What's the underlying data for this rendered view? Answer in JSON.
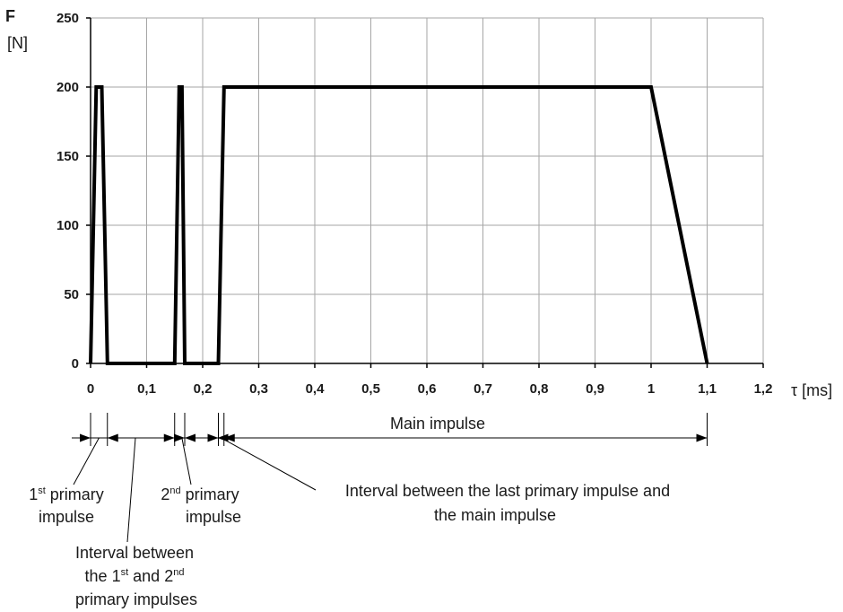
{
  "chart_data": {
    "type": "line",
    "title": "",
    "xlabel": "τ [ms]",
    "ylabel_symbol": "F",
    "ylabel_unit": "[N]",
    "xlim": [
      0,
      1.2
    ],
    "ylim": [
      0,
      250
    ],
    "grid": true,
    "xticks": [
      0,
      0.1,
      0.2,
      0.3,
      0.4,
      0.5,
      0.6,
      0.7,
      0.8,
      0.9,
      1.0,
      1.1,
      1.2
    ],
    "xtick_labels": [
      "0",
      "0,1",
      "0,2",
      "0,3",
      "0,4",
      "0,5",
      "0,6",
      "0,7",
      "0,8",
      "0,9",
      "1",
      "1,1",
      "1,2"
    ],
    "yticks": [
      0,
      50,
      100,
      150,
      200,
      250
    ],
    "ytick_labels": [
      "0",
      "50",
      "100",
      "150",
      "200",
      "250"
    ],
    "series": [
      {
        "x": [
          0,
          0.01,
          0.02,
          0.03,
          0.03,
          0.15,
          0.158,
          0.163,
          0.168,
          0.168,
          0.228,
          0.238,
          1.0,
          1.1
        ],
        "y": [
          0,
          200,
          200,
          0,
          0,
          0,
          200,
          200,
          0,
          0,
          0,
          200,
          200,
          0
        ]
      }
    ],
    "markers": [
      0,
      0.03,
      0.15,
      0.168,
      0.228,
      0.238,
      1.1
    ],
    "annotations": {
      "main": "Main impulse",
      "first": {
        "pre": "1",
        "sup": "st",
        "post": " primary",
        "line2": "impulse"
      },
      "interval1": {
        "line1": "Interval between",
        "pre": "the 1",
        "sup1": "st",
        "mid": " and 2",
        "sup2": "nd",
        "line3": "primary impulses"
      },
      "second": {
        "pre": "2",
        "sup": "nd",
        "post": " primary",
        "line2": "impulse"
      },
      "last": {
        "line1": "Interval between the last primary impulse and",
        "line2": "the main impulse"
      }
    }
  }
}
